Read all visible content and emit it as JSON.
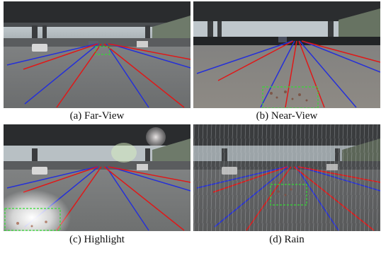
{
  "figure": {
    "panels": [
      {
        "id": "a",
        "caption": "(a) Far-View"
      },
      {
        "id": "b",
        "caption": "(b) Near-View"
      },
      {
        "id": "c",
        "caption": "(c) Highlight"
      },
      {
        "id": "d",
        "caption": "(d) Rain"
      }
    ]
  },
  "colors": {
    "red_lane": "#e01818",
    "blue_lane": "#2530d8",
    "highlight_box": "#33dd33"
  }
}
